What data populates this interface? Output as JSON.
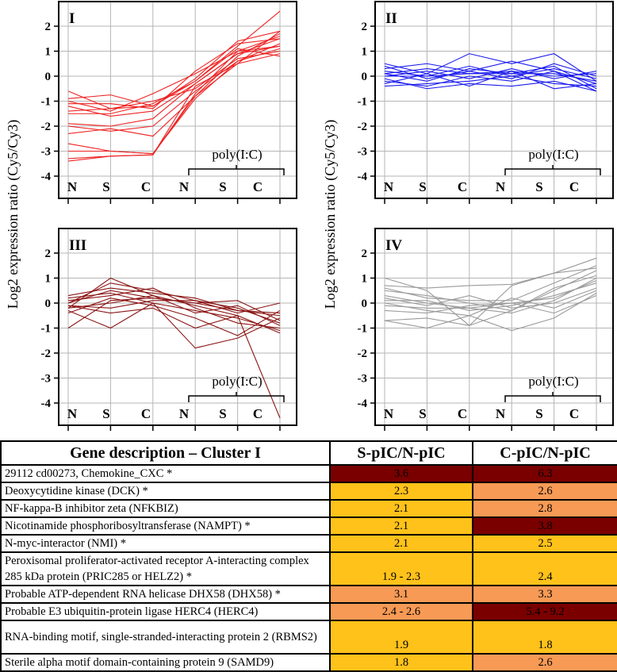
{
  "chart_data": {
    "type": "line",
    "ylabel": "Log2 expression ratio (Cy5/Cy3)",
    "ylim": [
      -4,
      2
    ],
    "yticks": [
      "2",
      "1",
      "0",
      "-1",
      "-2",
      "-3",
      "-4"
    ],
    "x_labels": [
      "N",
      "S",
      "C",
      "N",
      "S",
      "C"
    ],
    "bracket_label": "poly(I:C)",
    "grid": true,
    "panels": [
      {
        "name": "I",
        "color": "#ee2222",
        "series": [
          [
            -0.6,
            -1.3,
            -1.2,
            -0.1,
            1.4,
            1.8
          ],
          [
            -0.9,
            -0.75,
            -1.2,
            -0.2,
            1.2,
            2.6
          ],
          [
            -1.0,
            -1.4,
            -0.7,
            0.1,
            1.0,
            1.6
          ],
          [
            -1.2,
            -1.6,
            -1.4,
            -0.3,
            0.9,
            1.2
          ],
          [
            -1.4,
            -1.3,
            -1.0,
            -0.5,
            0.7,
            1.0
          ],
          [
            -1.1,
            -1.1,
            -1.3,
            0.2,
            1.3,
            1.5
          ],
          [
            -1.9,
            -2.0,
            -1.7,
            -0.3,
            0.9,
            1.5
          ],
          [
            -2.0,
            -2.2,
            -2.0,
            -0.6,
            0.6,
            1.1
          ],
          [
            -2.3,
            -2.1,
            -2.4,
            -0.8,
            0.5,
            0.9
          ],
          [
            -2.7,
            -3.0,
            -3.1,
            -0.9,
            0.6,
            1.3
          ],
          [
            -3.0,
            -3.0,
            -3.1,
            -0.8,
            0.8,
            1.7
          ],
          [
            -3.3,
            -3.2,
            -3.15,
            -0.7,
            1.0,
            1.2
          ],
          [
            -3.4,
            -3.2,
            -3.15,
            -0.4,
            0.5,
            1.8
          ],
          [
            -1.5,
            -1.5,
            -1.1,
            -0.2,
            1.1,
            0.8
          ]
        ]
      },
      {
        "name": "II",
        "color": "#1a1aee",
        "series": [
          [
            0.5,
            0.1,
            0.9,
            0.5,
            0.9,
            -0.2
          ],
          [
            0.3,
            0.5,
            0.2,
            0.6,
            0.2,
            -0.3
          ],
          [
            0.1,
            -0.2,
            0.3,
            0.1,
            0.4,
            -0.5
          ],
          [
            0.0,
            0.2,
            -0.1,
            0.3,
            -0.1,
            0.2
          ],
          [
            -0.2,
            -0.4,
            0.0,
            -0.2,
            0.2,
            -0.6
          ],
          [
            0.2,
            0.0,
            0.4,
            0.0,
            0.3,
            -0.1
          ],
          [
            -0.4,
            -0.3,
            -0.2,
            0.0,
            -0.3,
            -0.4
          ],
          [
            0.1,
            0.3,
            0.1,
            0.2,
            0.0,
            0.1
          ],
          [
            -0.1,
            -0.5,
            -0.3,
            -0.4,
            -0.2,
            -0.6
          ],
          [
            0.4,
            -0.1,
            0.2,
            -0.1,
            0.5,
            0.0
          ],
          [
            0.0,
            0.0,
            0.1,
            0.1,
            0.1,
            -0.2
          ],
          [
            -0.3,
            0.1,
            -0.4,
            0.2,
            -0.5,
            -0.3
          ]
        ]
      },
      {
        "name": "III",
        "color": "#8b1414",
        "series": [
          [
            -1.0,
            0.1,
            0.2,
            0.0,
            -0.3,
            -0.5
          ],
          [
            -0.2,
            1.0,
            0.3,
            -0.1,
            -0.5,
            -4.6
          ],
          [
            0.0,
            0.8,
            0.5,
            0.1,
            -0.2,
            -0.8
          ],
          [
            -0.3,
            -1.0,
            0.0,
            -1.8,
            -1.4,
            -0.6
          ],
          [
            0.1,
            0.3,
            0.6,
            -0.2,
            -0.8,
            -1.0
          ],
          [
            -0.1,
            -0.2,
            0.1,
            0.1,
            -0.4,
            0.0
          ],
          [
            0.2,
            0.4,
            0.0,
            -0.3,
            -0.6,
            -1.1
          ],
          [
            -0.4,
            0.2,
            -0.1,
            -0.6,
            -1.3,
            -0.3
          ],
          [
            0.0,
            0.5,
            0.2,
            0.0,
            0.1,
            -0.7
          ],
          [
            -0.2,
            0.0,
            0.3,
            -0.4,
            -0.1,
            -0.9
          ],
          [
            0.3,
            0.6,
            0.4,
            0.2,
            -0.3,
            -0.4
          ],
          [
            -0.1,
            -0.4,
            -0.2,
            -1.0,
            -0.5,
            -1.2
          ]
        ]
      },
      {
        "name": "IV",
        "color": "#9a9a9a",
        "series": [
          [
            1.0,
            0.5,
            -0.9,
            0.7,
            1.2,
            1.8
          ],
          [
            0.7,
            0.6,
            0.7,
            0.75,
            1.2,
            1.4
          ],
          [
            -0.7,
            -0.6,
            -0.9,
            -0.3,
            0.6,
            1.1
          ],
          [
            -0.7,
            -1.0,
            -0.5,
            -1.1,
            -0.6,
            0.4
          ],
          [
            0.3,
            0.0,
            -0.2,
            0.0,
            0.2,
            0.9
          ],
          [
            0.5,
            0.3,
            0.0,
            -0.3,
            0.5,
            1.3
          ],
          [
            0.0,
            -0.3,
            -0.5,
            0.2,
            -0.2,
            0.5
          ],
          [
            0.2,
            -0.1,
            0.3,
            -0.2,
            0.0,
            0.6
          ],
          [
            -0.3,
            -0.4,
            -0.1,
            0.0,
            -0.4,
            0.3
          ],
          [
            0.6,
            0.2,
            0.1,
            0.1,
            0.8,
            1.5
          ],
          [
            0.1,
            0.1,
            -0.3,
            -0.1,
            0.3,
            0.8
          ],
          [
            -0.1,
            -0.2,
            -0.2,
            -0.4,
            0.1,
            1.0
          ]
        ]
      }
    ]
  },
  "table": {
    "headers": [
      "Gene description – Cluster I",
      "S-pIC/N-pIC",
      "C-pIC/N-pIC"
    ],
    "colors": {
      "dark": "#7a0000",
      "orange": "#f79a55",
      "yellow": "#ffc21a"
    },
    "rows": [
      {
        "gene": "29112 cd00273, Chemokine_CXC *",
        "s": "3.6",
        "s_level": "dark",
        "c": "6.3",
        "c_level": "dark",
        "tall": false
      },
      {
        "gene": "Deoxycytidine kinase (DCK) *",
        "s": "2.3",
        "s_level": "yellow",
        "c": "2.6",
        "c_level": "orange",
        "tall": false
      },
      {
        "gene": "NF-kappa-B inhibitor zeta (NFKBIZ)",
        "s": "2.1",
        "s_level": "yellow",
        "c": "2.8",
        "c_level": "orange",
        "tall": false
      },
      {
        "gene": "Nicotinamide phosphoribosyltransferase (NAMPT) *",
        "s": "2.1",
        "s_level": "yellow",
        "c": "3.8",
        "c_level": "dark",
        "tall": false
      },
      {
        "gene": "N-myc-interactor (NMI) *",
        "s": "2.1",
        "s_level": "yellow",
        "c": "2.5",
        "c_level": "yellow",
        "tall": false
      },
      {
        "gene": "Peroxisomal proliferator-activated receptor A-interacting complex 285 kDa protein (PRIC285 or HELZ2) *",
        "s": "1.9 - 2.3",
        "s_level": "yellow",
        "c": "2.4",
        "c_level": "yellow",
        "tall": true
      },
      {
        "gene": "Probable ATP-dependent RNA helicase DHX58 (DHX58) *",
        "s": "3.1",
        "s_level": "orange",
        "c": "3.3",
        "c_level": "orange",
        "tall": false
      },
      {
        "gene": "Probable E3 ubiquitin-protein ligase HERC4 (HERC4)",
        "s": "2.4 - 2.6",
        "s_level": "orange",
        "c": "5.4 - 9.2",
        "c_level": "dark",
        "tall": false
      },
      {
        "gene": "RNA-binding motif, single-stranded-interacting protein 2 (RBMS2)",
        "s": "1.9",
        "s_level": "yellow",
        "c": "1.8",
        "c_level": "yellow",
        "tall": true
      },
      {
        "gene": "Sterile alpha motif domain-containing protein 9 (SAMD9)",
        "s": "1.8",
        "s_level": "yellow",
        "c": "2.6",
        "c_level": "orange",
        "tall": false
      }
    ]
  }
}
